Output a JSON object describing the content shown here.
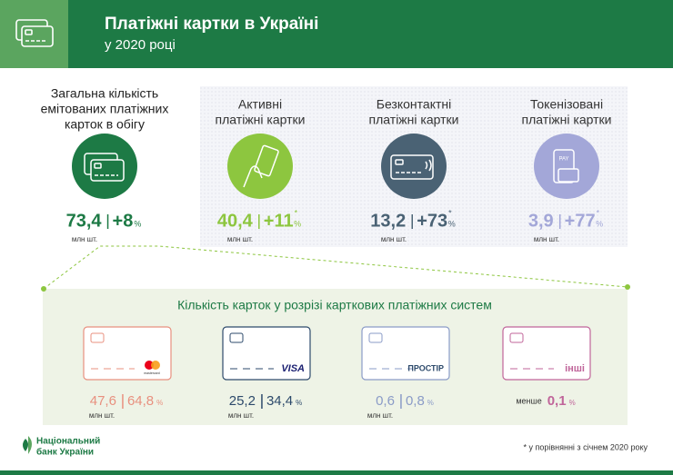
{
  "header": {
    "title": "Платіжні картки в Україні",
    "subtitle": "у 2020 році"
  },
  "units": {
    "million": "млн шт.",
    "percent": "%",
    "asterisk": "*"
  },
  "total": {
    "label_lines": [
      "Загальна кількість",
      "емітованих платіжних",
      "карток в обігу"
    ],
    "value": "73,4",
    "change": "+8"
  },
  "categories": [
    {
      "label_lines": [
        "Активні",
        "платіжні картки"
      ],
      "value": "40,4",
      "change": "+11"
    },
    {
      "label_lines": [
        "Безконтактні",
        "платіжні картки"
      ],
      "value": "13,2",
      "change": "+73"
    },
    {
      "label_lines": [
        "Токенізовані",
        "платіжні картки"
      ],
      "value": "3,9",
      "change": "+77",
      "icon_text": "PAY"
    }
  ],
  "systems": {
    "title": "Кількість карток у розрізі карткових платіжних систем",
    "items": [
      {
        "brand": "mastercard",
        "count": "47,6",
        "share": "64,8"
      },
      {
        "brand": "VISA",
        "count": "25,2",
        "share": "34,4"
      },
      {
        "brand": "ПРОСТІР",
        "count": "0,6",
        "share": "0,8"
      },
      {
        "brand": "інші",
        "prefix": "менше",
        "share": "0,1"
      }
    ]
  },
  "footer": {
    "logo_lines": [
      "Національний",
      "банк України"
    ],
    "note": "* у порівнянні з січнем 2020 року"
  }
}
